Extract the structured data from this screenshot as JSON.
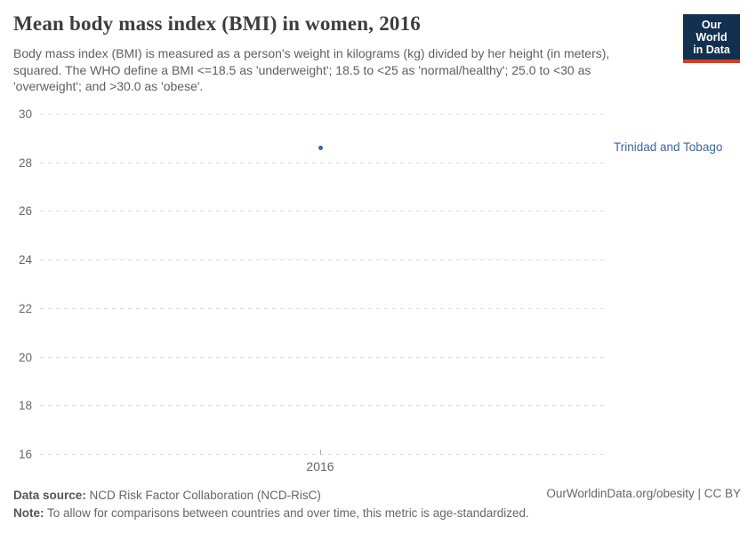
{
  "header": {
    "title": "Mean body mass index (BMI) in women, 2016",
    "subtitle": "Body mass index (BMI) is measured as a person's weight in kilograms (kg) divided by her height (in meters), squared. The WHO define a BMI <=18.5 as 'underweight'; 18.5 to <25 as 'normal/healthy'; 25.0 to <30 as 'overweight'; and >30.0 as 'obese'.",
    "logo": {
      "line1": "Our World",
      "line2": "in Data",
      "bg_color": "#12304f",
      "stripe_color": "#d73c22"
    }
  },
  "chart_data": {
    "type": "scatter",
    "x": [
      2016
    ],
    "xticklabels": [
      "2016"
    ],
    "series": [
      {
        "name": "Trinidad and Tobago",
        "values": [
          28.6
        ],
        "color": "#3d63a8"
      }
    ],
    "yticks": [
      16,
      18,
      20,
      22,
      24,
      26,
      28,
      30
    ],
    "ylim": [
      16,
      30
    ],
    "grid": true,
    "legend_position": "right-of-point"
  },
  "footer": {
    "source_label": "Data source:",
    "source_text": " NCD Risk Factor Collaboration (NCD-RisC)",
    "note_label": "Note:",
    "note_text": " To allow for comparisons between countries and over time, this metric is age-standardized.",
    "link": "OurWorldinData.org/obesity | CC BY"
  }
}
